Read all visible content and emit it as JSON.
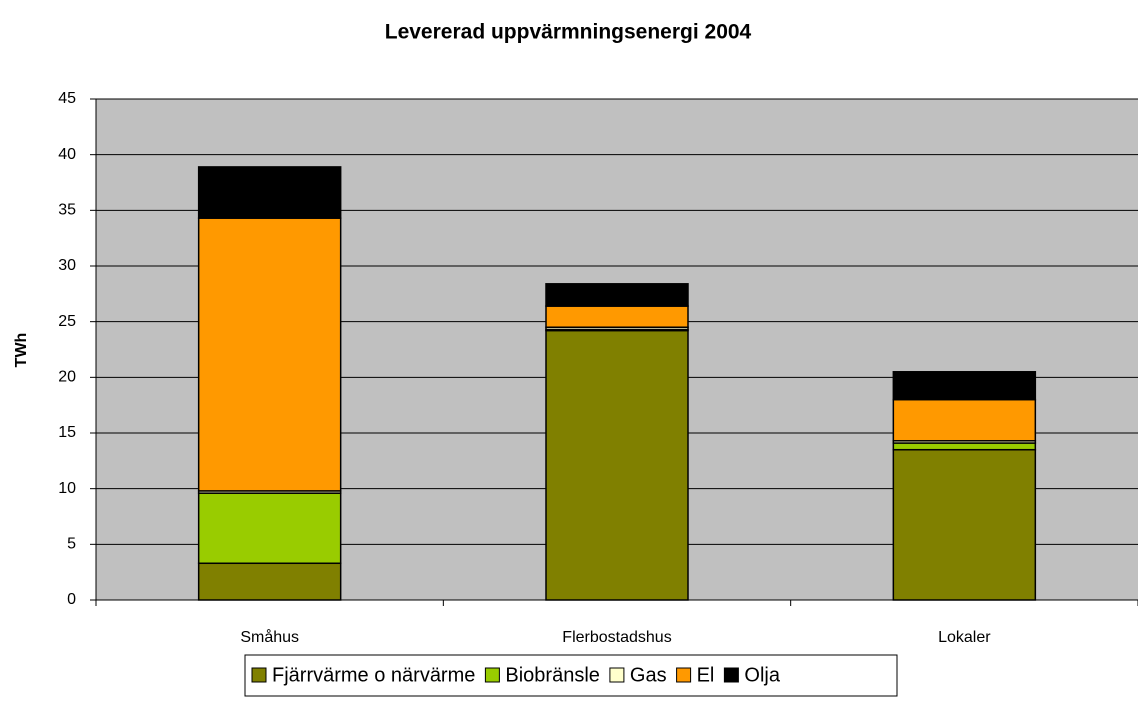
{
  "chart_data": {
    "type": "stacked_bar",
    "title": "Levererad uppvärmningsenergi 2004",
    "y_label": "TWh",
    "categories": [
      "Småhus",
      "Flerbostadshus",
      "Lokaler"
    ],
    "series": [
      {
        "name": "Fjärrvärme o närvärme",
        "color": "#808000",
        "values": [
          3.3,
          24.2,
          13.5
        ]
      },
      {
        "name": "Biobränsle",
        "color": "#99cc00",
        "values": [
          6.3,
          0.1,
          0.6
        ]
      },
      {
        "name": "Gas",
        "color": "#ffffcc",
        "values": [
          0.2,
          0.2,
          0.2
        ]
      },
      {
        "name": "El",
        "color": "#ff9900",
        "values": [
          24.5,
          1.9,
          3.7
        ]
      },
      {
        "name": "Olja",
        "color": "#000000",
        "values": [
          4.6,
          2.0,
          2.5
        ]
      }
    ],
    "ylim": [
      0,
      45
    ],
    "yticks": [
      0,
      5,
      10,
      15,
      20,
      25,
      30,
      35,
      40,
      45
    ],
    "grid": true,
    "legend": "bottom"
  }
}
